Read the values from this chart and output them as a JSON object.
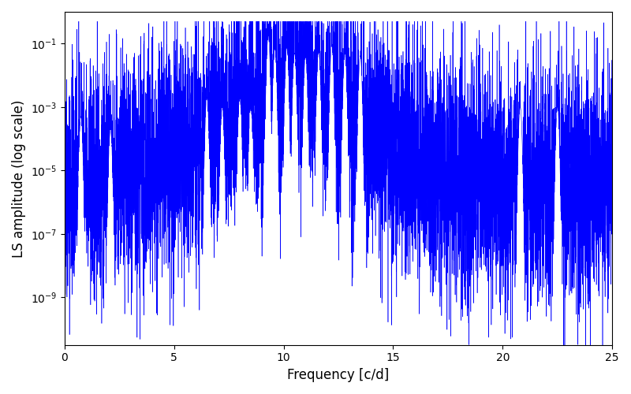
{
  "line_color": "#0000FF",
  "xlabel": "Frequency [c/d]",
  "ylabel": "LS amplitude (log scale)",
  "xlim": [
    0,
    25
  ],
  "ylim_log_min": -10.5,
  "ylim_log_max": 0,
  "xticks": [
    0,
    5,
    10,
    15,
    20,
    25
  ],
  "figsize": [
    8.0,
    5.0
  ],
  "dpi": 100,
  "seed": 42,
  "n_points": 8000,
  "freq_max": 25.0,
  "background_color": "#ffffff",
  "line_width": 0.4
}
